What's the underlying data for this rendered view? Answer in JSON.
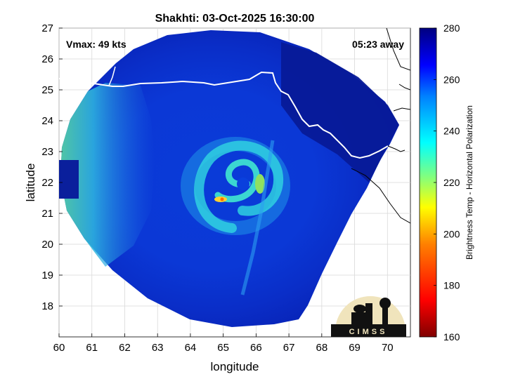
{
  "chart_data": {
    "type": "heatmap",
    "title": "Shakhti: 03-Oct-2025 16:30:00",
    "xlabel": "longitude",
    "ylabel": "latitude",
    "xlim": [
      60,
      70.7
    ],
    "ylim": [
      17,
      27
    ],
    "xticks": [
      "60",
      "61",
      "62",
      "63",
      "64",
      "65",
      "66",
      "67",
      "68",
      "69",
      "70"
    ],
    "yticks": [
      "18",
      "19",
      "20",
      "21",
      "22",
      "23",
      "24",
      "25",
      "26",
      "27"
    ],
    "grid": true,
    "annotations": {
      "vmax": "Vmax: 49 kts",
      "time_away": "05:23 away"
    },
    "colorbar": {
      "label": "Brightness Temp - Horizontal Polarization",
      "range": [
        160,
        280
      ],
      "ticks": [
        "160",
        "180",
        "200",
        "220",
        "240",
        "260",
        "280"
      ]
    },
    "storm_center": {
      "lon": 66.0,
      "lat": 21.9
    },
    "swath_center": {
      "lon": 65.3,
      "lat": 21.9
    },
    "coastline_color": "#ffffff",
    "logo_text": "CIMSS"
  }
}
